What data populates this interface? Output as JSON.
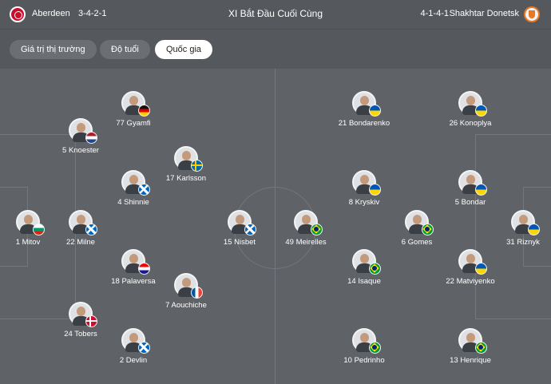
{
  "header": {
    "title": "XI Bắt Đầu Cuối Cùng",
    "home_team": "Aberdeen",
    "home_formation": "3-4-2-1",
    "away_team": "Shakhtar Donetsk",
    "away_formation": "4-1-4-1"
  },
  "tabs": [
    {
      "label": "Giá trị thị trường",
      "active": false
    },
    {
      "label": "Độ tuổi",
      "active": false
    },
    {
      "label": "Quốc gia",
      "active": true
    }
  ],
  "home_players": [
    {
      "label": "1 Mitov",
      "flag": "bulgaria-flag"
    },
    {
      "label": "22 Milne",
      "flag": "scotland-flag"
    },
    {
      "label": "5 Knoester",
      "flag": "netherlands-flag"
    },
    {
      "label": "4 Shinnie",
      "flag": "scotland-flag"
    },
    {
      "label": "24 Tobers",
      "flag": "denmark-flag"
    },
    {
      "label": "77 Gyamfi",
      "flag": "germany-flag"
    },
    {
      "label": "18 Palaversa",
      "flag": "croatia-flag"
    },
    {
      "label": "2 Devlin",
      "flag": "scotland-flag"
    },
    {
      "label": "17 Karlsson",
      "flag": "sweden-flag"
    },
    {
      "label": "7 Aouchiche",
      "flag": "france-flag"
    },
    {
      "label": "15 Nisbet",
      "flag": "scotland-flag"
    }
  ],
  "away_players": [
    {
      "label": "49 Meirelles",
      "flag": "brazil-flag"
    },
    {
      "label": "8 Kryskiv",
      "flag": "ukraine-flag"
    },
    {
      "label": "6 Gomes",
      "flag": "brazil-flag"
    },
    {
      "label": "14 Isaque",
      "flag": "brazil-flag"
    },
    {
      "label": "21 Bondarenko",
      "flag": "ukraine-flag"
    },
    {
      "label": "10 Pedrinho",
      "flag": "brazil-flag"
    },
    {
      "label": "26 Konoplya",
      "flag": "ukraine-flag"
    },
    {
      "label": "5 Bondar",
      "flag": "ukraine-flag"
    },
    {
      "label": "22 Matviyenko",
      "flag": "ukraine-flag"
    },
    {
      "label": "13 Henrique",
      "flag": "brazil-flag"
    },
    {
      "label": "31 Riznyk",
      "flag": "ukraine-flag"
    }
  ]
}
